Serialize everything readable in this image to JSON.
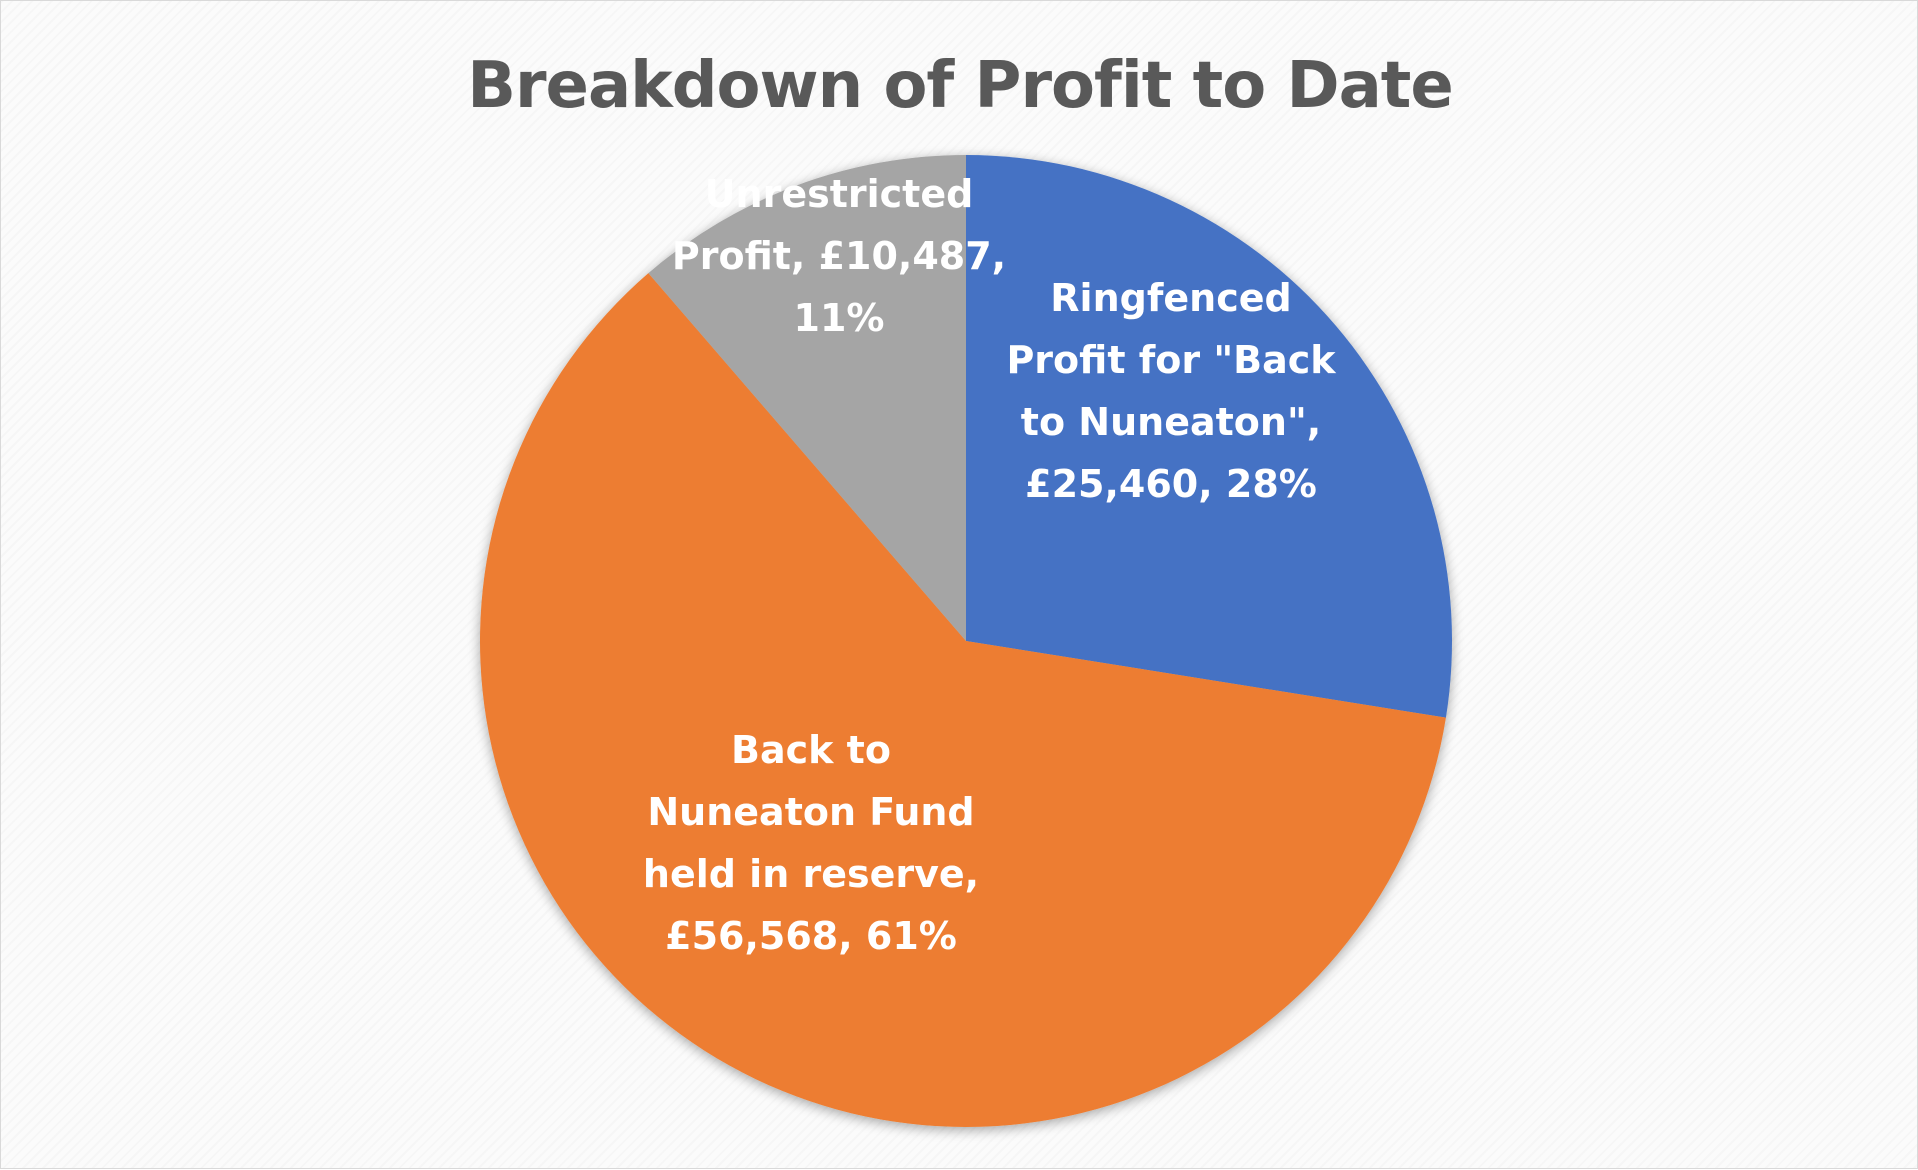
{
  "chart_data": {
    "type": "pie",
    "title": "Breakdown of Profit to Date",
    "slices": [
      {
        "label": "Ringfenced Profit for \"Back to Nuneaton\"",
        "value": 25460,
        "value_text": "£25,460",
        "percent_text": "28%",
        "color": "#4472C4",
        "label_lines": [
          "Ringfenced",
          "Profit for \"Back",
          "to Nuneaton\",",
          "£25,460, 28%"
        ]
      },
      {
        "label": "Back to Nuneaton Fund held in reserve",
        "value": 56568,
        "value_text": "£56,568",
        "percent_text": "61%",
        "color": "#ED7D31",
        "label_lines": [
          "Back to",
          "Nuneaton Fund",
          "held in reserve,",
          "£56,568, 61%"
        ]
      },
      {
        "label": "Unrestricted Profit",
        "value": 10487,
        "value_text": "£10,487",
        "percent_text": "11%",
        "color": "#A5A5A5",
        "label_lines": [
          "Unrestricted",
          "Profit, £10,487,",
          "11%"
        ]
      }
    ],
    "legend": "none"
  }
}
